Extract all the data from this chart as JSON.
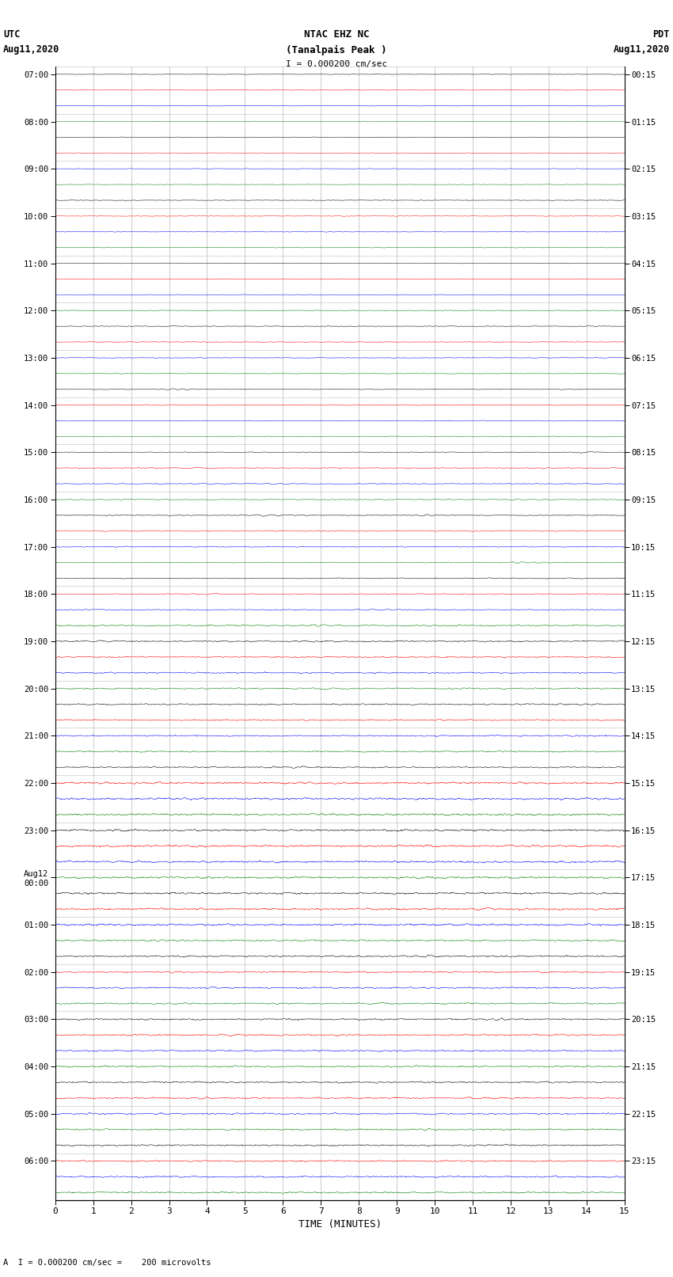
{
  "title_line1": "NTAC EHZ NC",
  "title_line2": "(Tanalpais Peak )",
  "title_line3": "I = 0.000200 cm/sec",
  "left_header_line1": "UTC",
  "left_header_line2": "Aug11,2020",
  "right_header_line1": "PDT",
  "right_header_line2": "Aug11,2020",
  "xlabel": "TIME (MINUTES)",
  "footer": "A  I = 0.000200 cm/sec =    200 microvolts",
  "utc_labels": [
    "07:00",
    "",
    "",
    "08:00",
    "",
    "",
    "09:00",
    "",
    "",
    "10:00",
    "",
    "",
    "11:00",
    "",
    "",
    "12:00",
    "",
    "",
    "13:00",
    "",
    "",
    "14:00",
    "",
    "",
    "15:00",
    "",
    "",
    "16:00",
    "",
    "",
    "17:00",
    "",
    "",
    "18:00",
    "",
    "",
    "19:00",
    "",
    "",
    "20:00",
    "",
    "",
    "21:00",
    "",
    "",
    "22:00",
    "",
    "",
    "23:00",
    "",
    "",
    "Aug12\n00:00",
    "",
    "",
    "01:00",
    "",
    "",
    "02:00",
    "",
    "",
    "03:00",
    "",
    "",
    "04:00",
    "",
    "",
    "05:00",
    "",
    "",
    "06:00",
    "",
    ""
  ],
  "pdt_labels": [
    "00:15",
    "",
    "",
    "01:15",
    "",
    "",
    "02:15",
    "",
    "",
    "03:15",
    "",
    "",
    "04:15",
    "",
    "",
    "05:15",
    "",
    "",
    "06:15",
    "",
    "",
    "07:15",
    "",
    "",
    "08:15",
    "",
    "",
    "09:15",
    "",
    "",
    "10:15",
    "",
    "",
    "11:15",
    "",
    "",
    "12:15",
    "",
    "",
    "13:15",
    "",
    "",
    "14:15",
    "",
    "",
    "15:15",
    "",
    "",
    "16:15",
    "",
    "",
    "17:15",
    "",
    "",
    "18:15",
    "",
    "",
    "19:15",
    "",
    "",
    "20:15",
    "",
    "",
    "21:15",
    "",
    "",
    "22:15",
    "",
    "",
    "23:15",
    "",
    ""
  ],
  "n_traces": 72,
  "trace_colors_cycle": [
    "black",
    "red",
    "blue",
    "green"
  ],
  "xlim": [
    0,
    15
  ],
  "xticks": [
    0,
    1,
    2,
    3,
    4,
    5,
    6,
    7,
    8,
    9,
    10,
    11,
    12,
    13,
    14,
    15
  ],
  "background_color": "white",
  "grid_color": "#aaaaaa",
  "seed": 42
}
